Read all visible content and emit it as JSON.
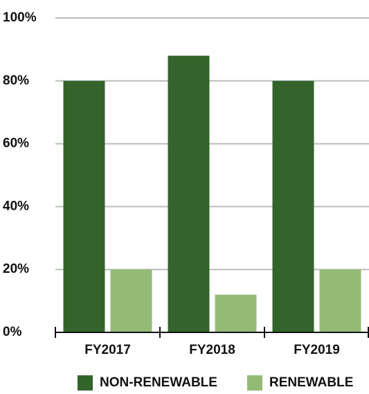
{
  "chart_data": {
    "type": "bar",
    "categories": [
      "FY2017",
      "FY2018",
      "FY2019"
    ],
    "series": [
      {
        "name": "NON-RENEWABLE",
        "color": "#33642b",
        "values": [
          80,
          88,
          80
        ]
      },
      {
        "name": "RENEWABLE",
        "color": "#93bb75",
        "values": [
          20,
          12,
          20
        ]
      }
    ],
    "ylim": [
      0,
      100
    ],
    "yticks": [
      {
        "value": 0,
        "label": "0%"
      },
      {
        "value": 20,
        "label": "20%"
      },
      {
        "value": 40,
        "label": "40%"
      },
      {
        "value": 60,
        "label": "60%"
      },
      {
        "value": 80,
        "label": "80%"
      },
      {
        "value": 100,
        "label": "100%"
      }
    ],
    "grid": true,
    "legend": "bottom"
  }
}
